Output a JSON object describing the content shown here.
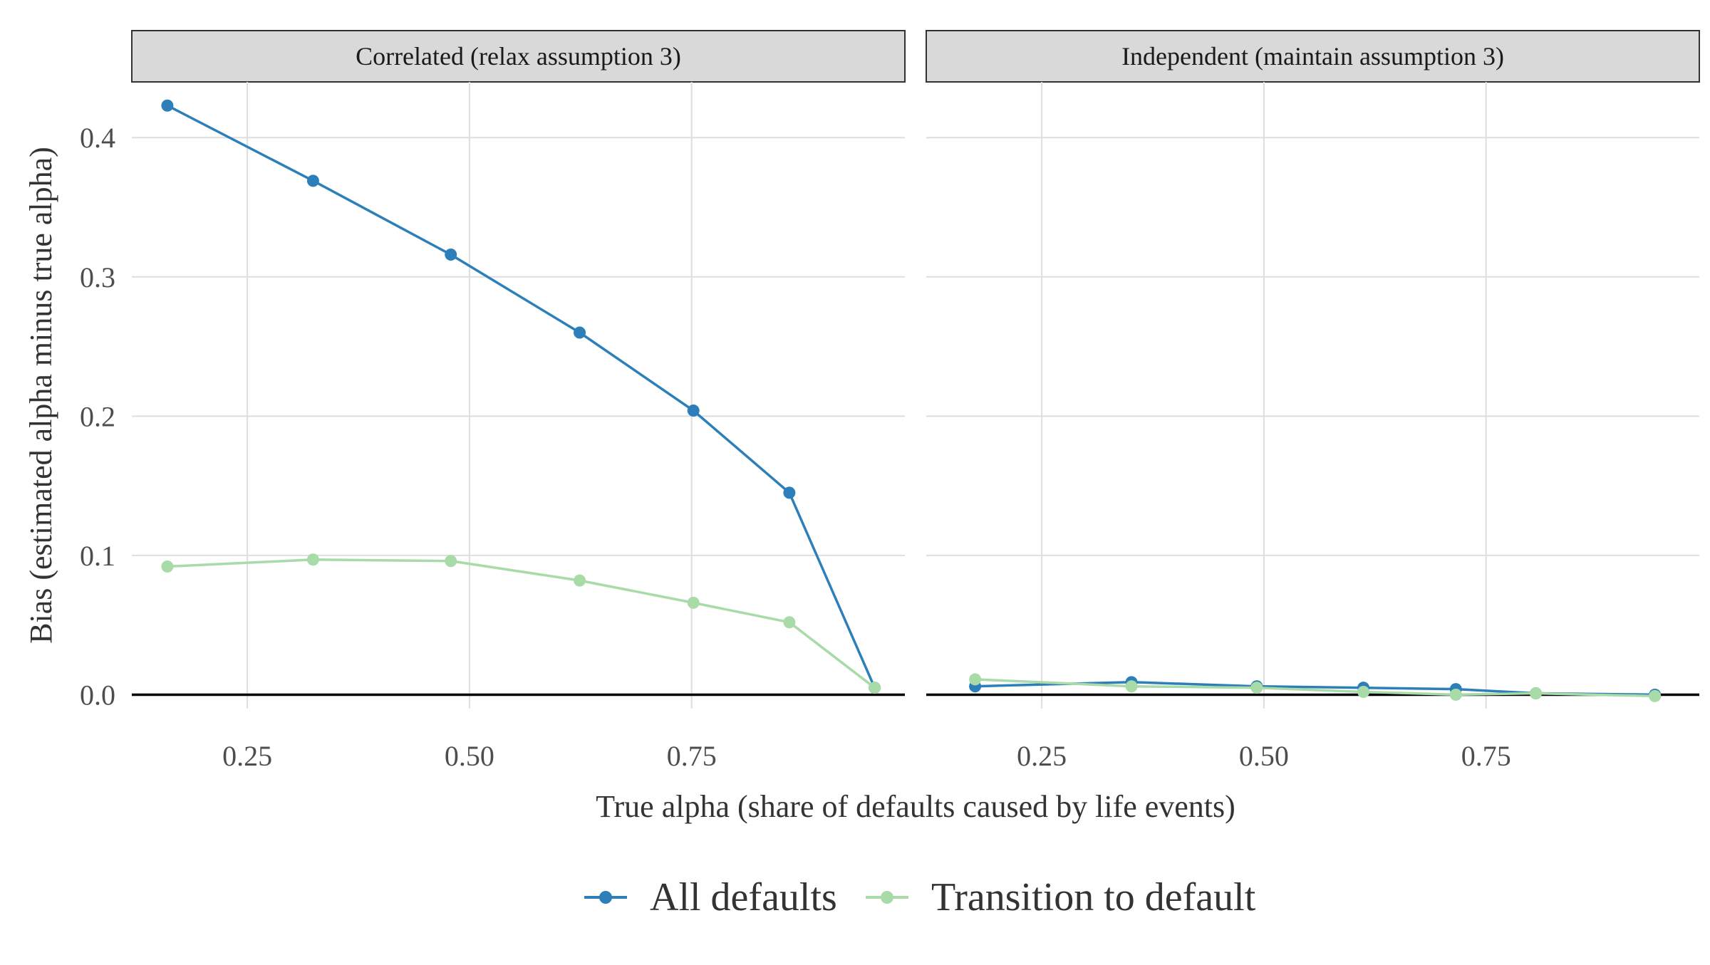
{
  "chart_data": {
    "type": "line",
    "xlabel": "True alpha (share of defaults caused by life events)",
    "ylabel": "Bias (estimated alpha minus true alpha)",
    "xlim": [
      0.12,
      0.99
    ],
    "ylim": [
      -0.01,
      0.44
    ],
    "x_ticks": [
      0.25,
      0.5,
      0.75
    ],
    "x_tick_labels": [
      "0.25",
      "0.50",
      "0.75"
    ],
    "y_ticks": [
      0.0,
      0.1,
      0.2,
      0.3,
      0.4
    ],
    "y_tick_labels": [
      "0.0",
      "0.1",
      "0.2",
      "0.3",
      "0.4"
    ],
    "grid": true,
    "legend_position": "bottom",
    "legend": [
      "All defaults",
      "Transition to default"
    ],
    "colors": {
      "All defaults": "#2c7fb8",
      "Transition to default": "#a8dba8"
    },
    "panels": [
      {
        "title": "Correlated (relax assumption 3)",
        "series": [
          {
            "name": "All defaults",
            "points": [
              [
                0.16,
                0.423
              ],
              [
                0.324,
                0.369
              ],
              [
                0.479,
                0.316
              ],
              [
                0.624,
                0.26
              ],
              [
                0.752,
                0.204
              ],
              [
                0.86,
                0.145
              ],
              [
                0.956,
                0.005
              ]
            ]
          },
          {
            "name": "Transition to default",
            "points": [
              [
                0.16,
                0.092
              ],
              [
                0.324,
                0.097
              ],
              [
                0.479,
                0.096
              ],
              [
                0.624,
                0.082
              ],
              [
                0.752,
                0.066
              ],
              [
                0.86,
                0.052
              ],
              [
                0.956,
                0.005
              ]
            ]
          }
        ]
      },
      {
        "title": "Independent (maintain assumption 3)",
        "series": [
          {
            "name": "All defaults",
            "points": [
              [
                0.175,
                0.006
              ],
              [
                0.351,
                0.009
              ],
              [
                0.492,
                0.006
              ],
              [
                0.612,
                0.005
              ],
              [
                0.716,
                0.004
              ],
              [
                0.806,
                0.001
              ],
              [
                0.94,
                0.0
              ]
            ]
          },
          {
            "name": "Transition to default",
            "points": [
              [
                0.175,
                0.011
              ],
              [
                0.351,
                0.006
              ],
              [
                0.492,
                0.005
              ],
              [
                0.612,
                0.002
              ],
              [
                0.716,
                0.0
              ],
              [
                0.806,
                0.001
              ],
              [
                0.94,
                -0.001
              ]
            ]
          }
        ]
      }
    ]
  }
}
